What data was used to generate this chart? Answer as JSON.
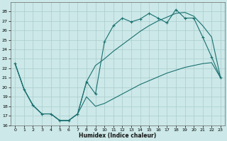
{
  "xlabel": "Humidex (Indice chaleur)",
  "background_color": "#cce8e8",
  "grid_color": "#aacccc",
  "line_color": "#1a7070",
  "xlim": [
    -0.5,
    23.5
  ],
  "ylim": [
    16,
    29
  ],
  "yticks": [
    16,
    17,
    18,
    19,
    20,
    21,
    22,
    23,
    24,
    25,
    26,
    27,
    28
  ],
  "xticks": [
    0,
    1,
    2,
    3,
    4,
    5,
    6,
    7,
    8,
    9,
    10,
    11,
    12,
    13,
    14,
    15,
    16,
    17,
    18,
    19,
    20,
    21,
    22,
    23
  ],
  "s1_x": [
    0,
    1,
    2,
    3,
    4,
    5,
    6,
    7,
    8,
    9,
    10,
    11,
    12,
    13,
    14,
    15,
    16,
    17,
    18,
    19,
    20,
    21,
    22,
    23
  ],
  "s1_y": [
    22.5,
    19.8,
    18.1,
    17.2,
    17.2,
    16.5,
    16.5,
    17.2,
    20.6,
    19.3,
    24.8,
    26.5,
    27.3,
    26.9,
    27.2,
    27.8,
    27.3,
    26.8,
    28.2,
    27.3,
    27.3,
    25.3,
    23.2,
    21.0
  ],
  "s2_x": [
    0,
    1,
    2,
    3,
    4,
    5,
    6,
    7,
    8,
    9,
    10,
    11,
    12,
    13,
    14,
    15,
    16,
    17,
    18,
    19,
    20,
    21,
    22,
    23
  ],
  "s2_y": [
    22.5,
    19.8,
    18.1,
    17.2,
    17.2,
    16.5,
    16.5,
    17.2,
    20.6,
    22.3,
    23.0,
    23.8,
    24.5,
    25.2,
    25.9,
    26.5,
    27.0,
    27.4,
    27.8,
    27.9,
    27.5,
    26.5,
    25.3,
    21.0
  ],
  "s3_x": [
    0,
    1,
    2,
    3,
    4,
    5,
    6,
    7,
    8,
    9,
    10,
    11,
    12,
    13,
    14,
    15,
    16,
    17,
    18,
    19,
    20,
    21,
    22,
    23
  ],
  "s3_y": [
    22.5,
    19.8,
    18.1,
    17.2,
    17.2,
    16.5,
    16.5,
    17.2,
    19.0,
    18.0,
    18.3,
    18.8,
    19.3,
    19.8,
    20.3,
    20.7,
    21.1,
    21.5,
    21.8,
    22.1,
    22.3,
    22.5,
    22.6,
    21.0
  ]
}
